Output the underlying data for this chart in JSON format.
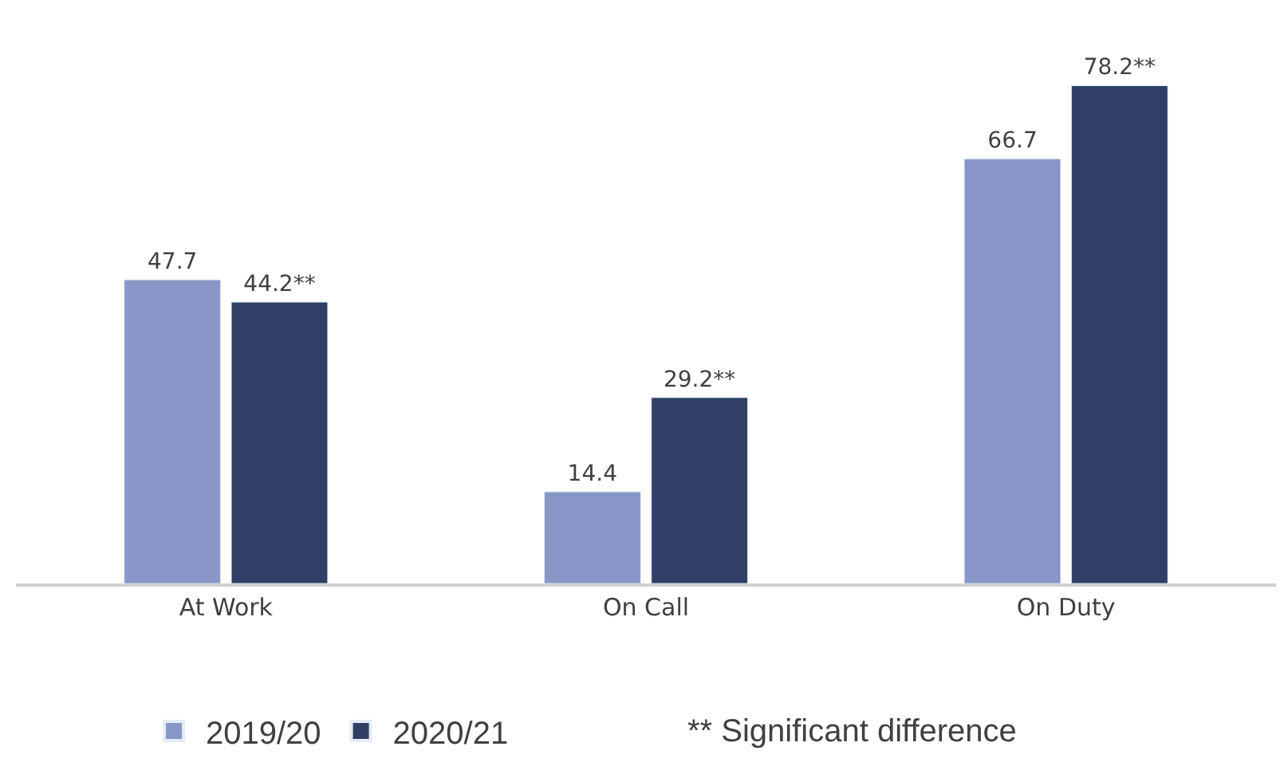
{
  "chart_data": {
    "type": "bar",
    "categories": [
      "At Work",
      "On Call",
      "On Duty"
    ],
    "series": [
      {
        "name": "2019/20",
        "color": "#8896c8",
        "values": [
          47.7,
          14.4,
          66.7
        ],
        "value_labels": [
          "47.7",
          "14.4",
          "66.7"
        ]
      },
      {
        "name": "2020/21",
        "color": "#2f3f65",
        "values": [
          44.2,
          29.2,
          78.2
        ],
        "value_labels": [
          "44.2**",
          "29.2**",
          "78.2**"
        ]
      }
    ],
    "annotations": [
      "** Significant difference"
    ],
    "legend": "bottom"
  }
}
